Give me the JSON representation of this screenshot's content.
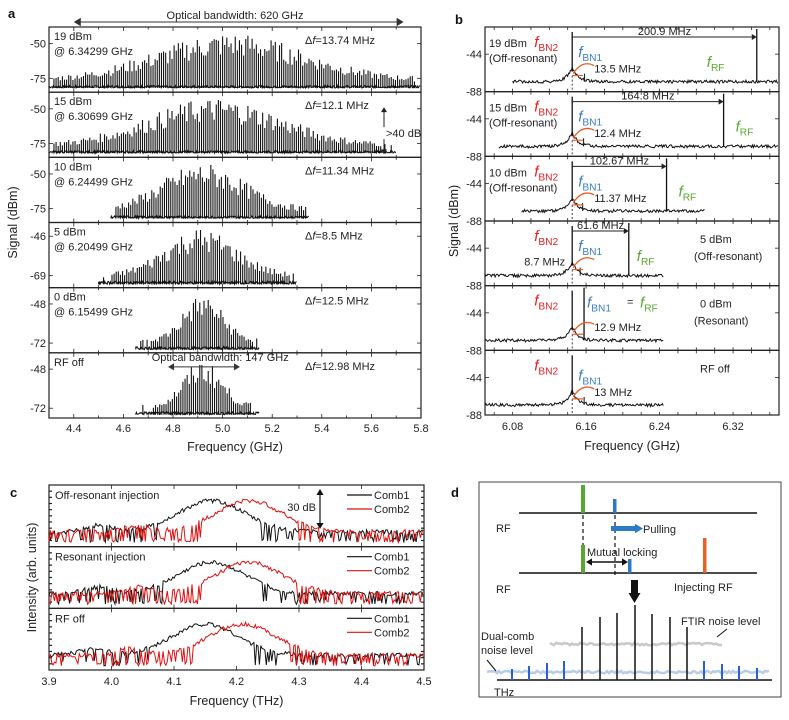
{
  "colors": {
    "red": "#e02020",
    "blue": "#3a7fc4",
    "green": "#58a830",
    "orange": "#e8602a",
    "black": "#111111",
    "comb_blue": "#2a5fd8",
    "noise_gray": "#c8c8c8",
    "noise_blue": "#b8cce8"
  },
  "chart_data": [
    {
      "panel": "a",
      "type": "line",
      "xlabel": "Frequency (GHz)",
      "ylabel": "Signal (dBm)",
      "xlim": [
        4.3,
        5.8
      ],
      "xticks": [
        "4.4",
        "4.6",
        "4.8",
        "5.0",
        "5.2",
        "5.4",
        "5.6",
        "5.8"
      ],
      "top_annotation": "Optical bandwidth: 620 GHz",
      "subplots": [
        {
          "label1": "19 dBm",
          "label2": "@ 6.34299 GHz",
          "df": "13.74 MHz",
          "yticks": [
            "-50",
            "-75"
          ],
          "ylim": [
            -85,
            -38
          ],
          "span": [
            4.3,
            5.8
          ],
          "center": 5.03,
          "width": 0.62,
          "peak": -42,
          "floor": -82
        },
        {
          "label1": "15 dBm",
          "label2": "@ 6.30699 GHz",
          "df": "12.1 MHz",
          "yticks": [
            "-50",
            "-75"
          ],
          "ylim": [
            -85,
            -38
          ],
          "span": [
            4.3,
            5.7
          ],
          "center": 4.97,
          "width": 0.55,
          "peak": -42,
          "floor": -82,
          "extra": ">40 dB"
        },
        {
          "label1": "10 dBm",
          "label2": "@ 6.24499 GHz",
          "df": "11.34 MHz",
          "yticks": [
            "-50",
            "-75"
          ],
          "ylim": [
            -85,
            -38
          ],
          "span": [
            4.55,
            5.35
          ],
          "center": 4.92,
          "width": 0.35,
          "peak": -42,
          "floor": -82
        },
        {
          "label1": "5 dBm",
          "label2": "@ 6.20499 GHz",
          "df": "8.5 MHz",
          "yticks": [
            "-46",
            "-69"
          ],
          "ylim": [
            -76,
            -38
          ],
          "span": [
            4.5,
            5.3
          ],
          "center": 4.91,
          "width": 0.3,
          "peak": -41,
          "floor": -74
        },
        {
          "label1": "0 dBm",
          "label2": "@ 6.15499 GHz",
          "df": "12.5 MHz",
          "yticks": [
            "-48",
            "-72"
          ],
          "ylim": [
            -78,
            -38
          ],
          "span": [
            4.65,
            5.15
          ],
          "center": 4.92,
          "width": 0.17,
          "peak": -42,
          "floor": -76
        },
        {
          "label1": "RF off",
          "label2": "",
          "df": "12.98 MHz",
          "yticks": [
            "-48",
            "-72"
          ],
          "ylim": [
            -78,
            -38
          ],
          "span": [
            4.65,
            5.15
          ],
          "center": 4.92,
          "width": 0.16,
          "peak": -42,
          "floor": -76,
          "annotation": "Optical bandwidth: 147 GHz"
        }
      ]
    },
    {
      "panel": "b",
      "type": "line",
      "xlabel": "Frequency (GHz)",
      "ylabel": "Signal (dBm)",
      "xlim": [
        6.05,
        6.37
      ],
      "xticks": [
        "6.08",
        "6.16",
        "6.24",
        "6.32"
      ],
      "yticks": [
        "-44",
        "-88"
      ],
      "subplots": [
        {
          "label1": "19 dBm",
          "label2": "(Off-resonant)",
          "spacing": "200.9 MHz",
          "bn_gap": "13.5 MHz",
          "f_bn2": 6.1449,
          "f_rf": 6.3458,
          "span": [
            6.08,
            6.37
          ]
        },
        {
          "label1": "15 dBm",
          "label2": "(Off-resonant)",
          "spacing": "164.8 MHz",
          "bn_gap": "12.4 MHz",
          "f_bn2": 6.1449,
          "f_rf": 6.3097,
          "span": [
            6.065,
            6.37
          ]
        },
        {
          "label1": "10 dBm",
          "label2": "(Off-resonant)",
          "spacing": "102.67 MHz",
          "bn_gap": "11.37 MHz",
          "f_bn2": 6.1449,
          "f_rf": 6.2476,
          "span": [
            6.09,
            6.29
          ]
        },
        {
          "label1": "5 dBm",
          "label2": "(Off-resonant)",
          "spacing": "61.6 MHz",
          "bn_gap": "8.7 MHz",
          "f_bn2": 6.1449,
          "f_rf": 6.2065,
          "span": [
            6.05,
            6.245
          ]
        },
        {
          "label1": "0 dBm",
          "label2": "(Resonant)",
          "spacing": "",
          "bn_gap": "12.9 MHz",
          "f_bn2": 6.1449,
          "f_rf": 6.1578,
          "span": [
            6.05,
            6.245
          ],
          "equal_label": "="
        },
        {
          "label1": "RF off",
          "label2": "",
          "spacing": "",
          "bn_gap": "13 MHz",
          "f_bn2": 6.1449,
          "f_rf": null,
          "span": [
            6.05,
            6.245
          ]
        }
      ],
      "labels": {
        "f": "f",
        "bn2": "BN2",
        "bn1": "BN1",
        "rf": "RF"
      }
    },
    {
      "panel": "c",
      "type": "line",
      "xlabel": "Frequency (THz)",
      "ylabel": "Intensity (arb. units)",
      "xlim": [
        3.9,
        4.5
      ],
      "xticks": [
        "3.9",
        "4.0",
        "4.1",
        "4.2",
        "4.3",
        "4.4",
        "4.5"
      ],
      "legend": [
        "Comb1",
        "Comb2"
      ],
      "legend_position": "top-right",
      "scale_annotation": "30 dB",
      "subplots": [
        {
          "title": "Off-resonant  injection",
          "comb1_center": 4.16,
          "comb2_center": 4.22
        },
        {
          "title": "Resonant injection",
          "comb1_center": 4.16,
          "comb2_center": 4.22
        },
        {
          "title": "RF off",
          "comb1_center": 4.15,
          "comb2_center": 4.21
        }
      ]
    }
  ],
  "panel_letters": {
    "a": "a",
    "b": "b",
    "c": "c",
    "d": "d"
  },
  "diagram": {
    "rf_label_1": "RF",
    "rf_label_2": "RF",
    "pulling": "Pulling",
    "mutual_locking": "Mutual locking",
    "injecting_rf": "Injecting RF",
    "ftir_noise": "FTIR noise level",
    "dualcomb_noise_1": "Dual-comb",
    "dualcomb_noise_2": "noise level",
    "thz": "THz"
  }
}
